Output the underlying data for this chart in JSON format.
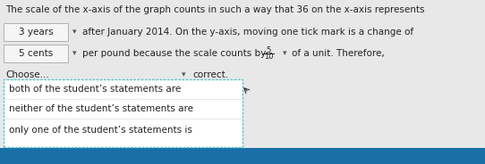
{
  "title_text": "The scale of the x-axis of the graph counts in such a way that 36 on the x-axis represents",
  "row1_box_text": "3 years",
  "row1_after_text": "after January 2014. On the y-axis, moving one tick mark is a change of",
  "row2_box_text": "5 cents",
  "row2_after_text": "per pound because the scale counts by",
  "fraction_num": "5",
  "fraction_den": "10",
  "row2_end_text": "of a unit. Therefore,",
  "choose_label": "Choose...",
  "correct_text": "correct.",
  "dropdown_options": [
    "both of the student’s statements are",
    "neither of the student’s statements are",
    "only one of the student’s statements is"
  ],
  "bg_color": "#e8e8e8",
  "box_fill": "#f5f5f5",
  "dropdown_fill": "#ffffff",
  "dropdown_border": "#5bc8c8",
  "choose_box_border": "#aaaaaa",
  "font_size": 7.5,
  "title_font_size": 7.5,
  "arrow_color": "#555555",
  "bottom_bg": "#1a6fa8"
}
